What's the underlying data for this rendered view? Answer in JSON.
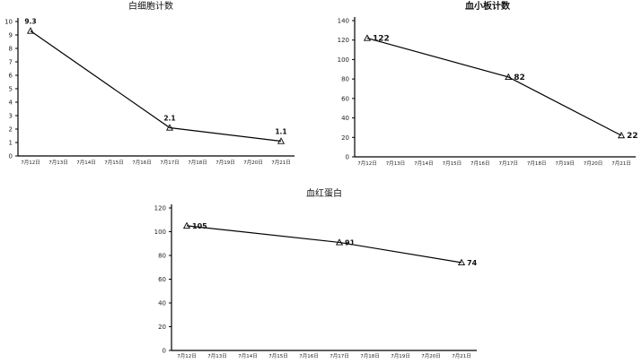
{
  "chart_data": [
    {
      "type": "line",
      "title": "白细胞计数",
      "categories": [
        "7月12日",
        "7月13日",
        "7月14日",
        "7月15日",
        "7月16日",
        "7月17日",
        "7月18日",
        "7月19日",
        "7月20日",
        "7月21日"
      ],
      "points": [
        {
          "category": "7月12日",
          "value": 9.3,
          "label": "9.3"
        },
        {
          "category": "7月17日",
          "value": 2.1,
          "label": "2.1"
        },
        {
          "category": "7月21日",
          "value": 1.1,
          "label": "1.1"
        }
      ],
      "yticks": [
        "0",
        "1",
        "2",
        "3",
        "4",
        "5",
        "6",
        "7",
        "8",
        "9",
        "10"
      ],
      "ylim": [
        0,
        10
      ],
      "label_position": "above",
      "marker": "triangle",
      "grid": false
    },
    {
      "type": "line",
      "title": "血小板计数",
      "categories": [
        "7月12日",
        "7月13日",
        "7月14日",
        "7月15日",
        "7月16日",
        "7月17日",
        "7月18日",
        "7月19日",
        "7月20日",
        "7月21日"
      ],
      "points": [
        {
          "category": "7月12日",
          "value": 122,
          "label": "122"
        },
        {
          "category": "7月17日",
          "value": 82,
          "label": "82"
        },
        {
          "category": "7月21日",
          "value": 22,
          "label": "22"
        }
      ],
      "yticks": [
        "0",
        "20",
        "40",
        "60",
        "80",
        "100",
        "120",
        "140"
      ],
      "ylim": [
        0,
        140
      ],
      "label_position": "right",
      "marker": "triangle",
      "grid": false
    },
    {
      "type": "line",
      "title": "血红蛋白",
      "categories": [
        "7月12日",
        "7月13日",
        "7月14日",
        "7月15日",
        "7月16日",
        "7月17日",
        "7月18日",
        "7月19日",
        "7月20日",
        "7月21日"
      ],
      "points": [
        {
          "category": "7月12日",
          "value": 105,
          "label": "105"
        },
        {
          "category": "7月17日",
          "value": 91,
          "label": "91"
        },
        {
          "category": "7月21日",
          "value": 74,
          "label": "74"
        }
      ],
      "yticks": [
        "0",
        "20",
        "40",
        "60",
        "80",
        "100",
        "120"
      ],
      "ylim": [
        0,
        120
      ],
      "label_position": "right",
      "marker": "triangle",
      "grid": false
    }
  ]
}
